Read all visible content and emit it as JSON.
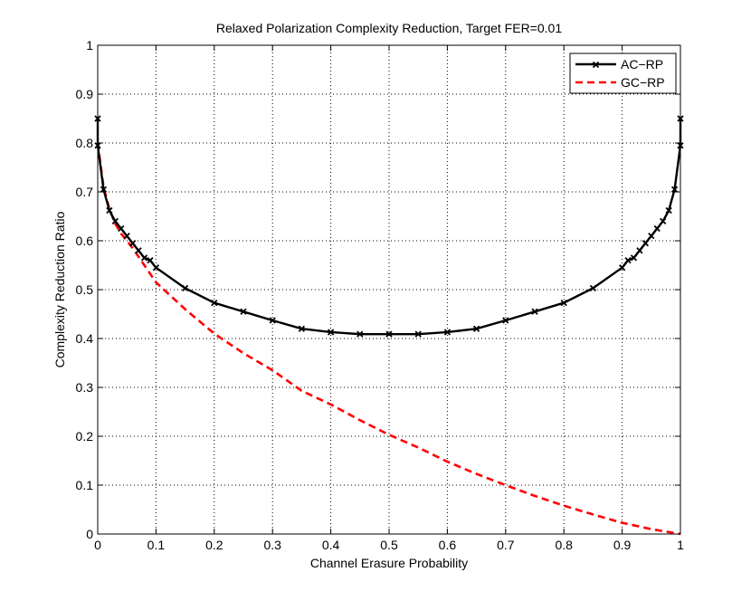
{
  "chart_data": {
    "type": "line",
    "title": "Relaxed Polarization Complexity Reduction, Target FER=0.01",
    "xlabel": "Channel Erasure Probability",
    "ylabel": "Complexity Reduction Ratio",
    "xlim": [
      0,
      1
    ],
    "ylim": [
      0,
      1
    ],
    "xticks": [
      0,
      0.1,
      0.2,
      0.3,
      0.4,
      0.5,
      0.6,
      0.7,
      0.8,
      0.9,
      1
    ],
    "yticks": [
      0,
      0.1,
      0.2,
      0.3,
      0.4,
      0.5,
      0.6,
      0.7,
      0.8,
      0.9,
      1
    ],
    "xtick_labels": [
      "0",
      "0.1",
      "0.2",
      "0.3",
      "0.4",
      "0.5",
      "0.6",
      "0.7",
      "0.8",
      "0.9",
      "1"
    ],
    "ytick_labels": [
      "0",
      "0.1",
      "0.2",
      "0.3",
      "0.4",
      "0.5",
      "0.6",
      "0.7",
      "0.8",
      "0.9",
      "1"
    ],
    "grid": true,
    "legend_position": "top-right",
    "series": [
      {
        "name": "AC−RP",
        "color": "#000000",
        "style": "solid",
        "marker": "x",
        "x": [
          0.0,
          0.0,
          0.01,
          0.02,
          0.03,
          0.04,
          0.05,
          0.06,
          0.07,
          0.08,
          0.09,
          0.1,
          0.15,
          0.2,
          0.25,
          0.3,
          0.35,
          0.4,
          0.45,
          0.5,
          0.55,
          0.6,
          0.65,
          0.7,
          0.75,
          0.8,
          0.85,
          0.9,
          0.91,
          0.92,
          0.93,
          0.94,
          0.95,
          0.96,
          0.97,
          0.98,
          0.99,
          1.0,
          1.0
        ],
        "y": [
          0.85,
          0.795,
          0.705,
          0.662,
          0.64,
          0.625,
          0.61,
          0.595,
          0.58,
          0.565,
          0.56,
          0.545,
          0.503,
          0.473,
          0.455,
          0.437,
          0.42,
          0.413,
          0.409,
          0.409,
          0.409,
          0.413,
          0.42,
          0.437,
          0.455,
          0.473,
          0.503,
          0.545,
          0.56,
          0.565,
          0.58,
          0.595,
          0.61,
          0.625,
          0.64,
          0.662,
          0.705,
          0.795,
          0.85
        ]
      },
      {
        "name": "GC−RP",
        "color": "#ff0000",
        "style": "dashed",
        "marker": "none",
        "x": [
          0.0,
          0.01,
          0.02,
          0.03,
          0.04,
          0.05,
          0.06,
          0.08,
          0.1,
          0.15,
          0.2,
          0.25,
          0.3,
          0.35,
          0.4,
          0.45,
          0.5,
          0.55,
          0.6,
          0.65,
          0.7,
          0.75,
          0.8,
          0.85,
          0.9,
          0.95,
          0.98,
          1.0
        ],
        "y": [
          0.8,
          0.71,
          0.665,
          0.635,
          0.615,
          0.6,
          0.585,
          0.55,
          0.515,
          0.46,
          0.41,
          0.37,
          0.335,
          0.293,
          0.265,
          0.233,
          0.203,
          0.177,
          0.148,
          0.123,
          0.1,
          0.078,
          0.058,
          0.04,
          0.023,
          0.01,
          0.004,
          0.0
        ]
      }
    ]
  }
}
